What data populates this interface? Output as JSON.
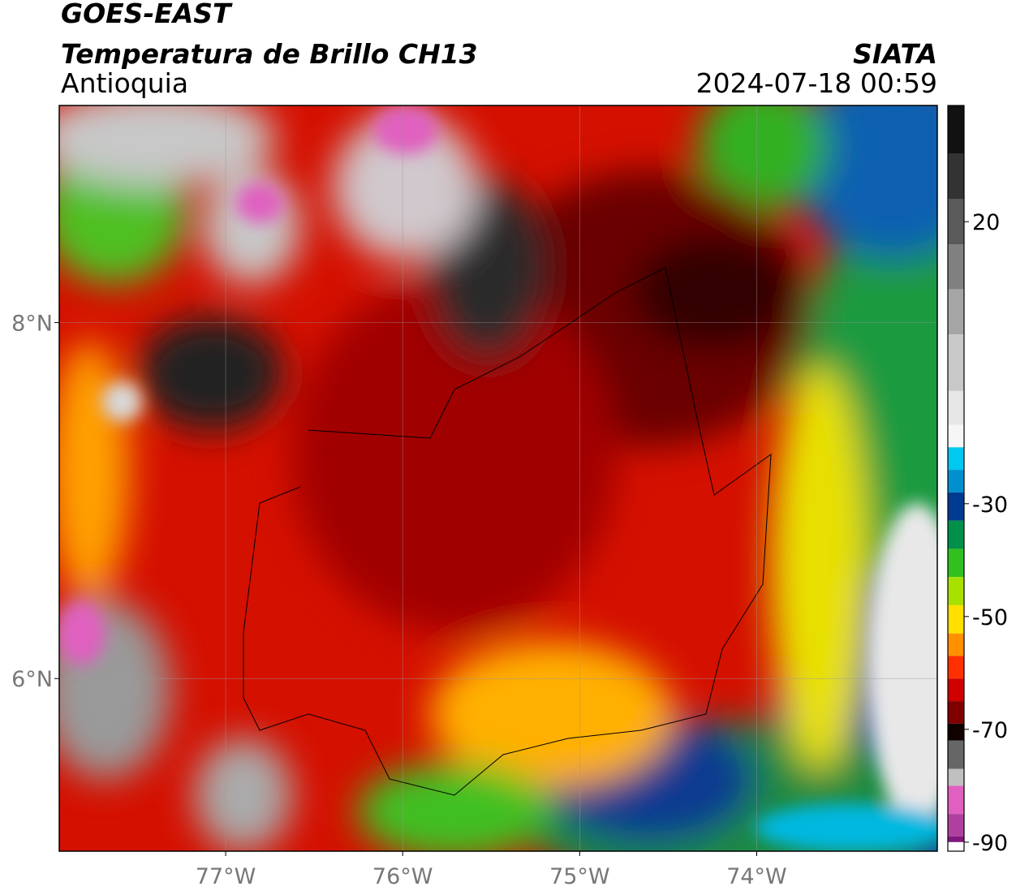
{
  "header": {
    "satellite": "GOES-EAST",
    "product": "Temperatura de Brillo CH13",
    "region": "Antioquia",
    "agency": "SIATA",
    "datetime": "2024-07-18 00:59"
  },
  "map": {
    "xlim": [
      -77.94,
      -72.98
    ],
    "ylim": [
      5.03,
      9.22
    ],
    "xticks": [
      {
        "value": -77,
        "label": "77°W"
      },
      {
        "value": -76,
        "label": "76°W"
      },
      {
        "value": -75,
        "label": "75°W"
      },
      {
        "value": -74,
        "label": "74°W"
      }
    ],
    "yticks": [
      {
        "value": 8,
        "label": "8°N"
      },
      {
        "value": 6,
        "label": "6°N"
      }
    ],
    "grid": true
  },
  "colorbar": {
    "lim": [
      -91.6,
      40.6
    ],
    "ticks": [
      20,
      -30,
      -50,
      -70,
      -90
    ],
    "colors": [
      {
        "value": 40.6,
        "color": "#111111"
      },
      {
        "value": 32,
        "color": "#333333"
      },
      {
        "value": 24,
        "color": "#5a5a5a"
      },
      {
        "value": 16,
        "color": "#808080"
      },
      {
        "value": 8,
        "color": "#a5a5a5"
      },
      {
        "value": 0,
        "color": "#c8c8c8"
      },
      {
        "value": -10,
        "color": "#e6e6e6"
      },
      {
        "value": -16,
        "color": "#f6f6f6"
      },
      {
        "value": -20,
        "color": "#00c8f0"
      },
      {
        "value": -24,
        "color": "#0090d0"
      },
      {
        "value": -28,
        "color": "#003a90"
      },
      {
        "value": -33,
        "color": "#00904a"
      },
      {
        "value": -38,
        "color": "#30c020"
      },
      {
        "value": -43,
        "color": "#a8e000"
      },
      {
        "value": -48,
        "color": "#ffe000"
      },
      {
        "value": -53,
        "color": "#ff9000"
      },
      {
        "value": -57,
        "color": "#ff3000"
      },
      {
        "value": -61,
        "color": "#d00000"
      },
      {
        "value": -65,
        "color": "#800000"
      },
      {
        "value": -69,
        "color": "#100000"
      },
      {
        "value": -72,
        "color": "#666666"
      },
      {
        "value": -77,
        "color": "#c0c0c0"
      },
      {
        "value": -80,
        "color": "#e060c0"
      },
      {
        "value": -85,
        "color": "#b040a0"
      },
      {
        "value": -89,
        "color": "#801880"
      },
      {
        "value": -90,
        "color": "#ffffff"
      }
    ]
  }
}
